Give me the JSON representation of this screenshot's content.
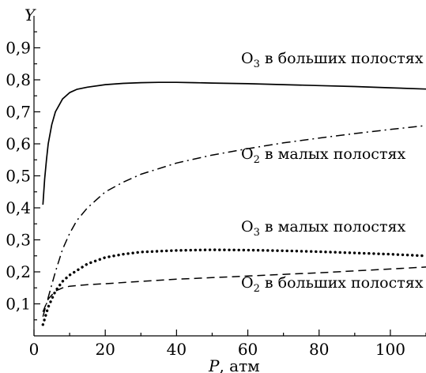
{
  "chart_data": {
    "type": "line",
    "xlabel": "P, атм",
    "ylabel": "Y",
    "xlim": [
      0,
      110
    ],
    "ylim": [
      0,
      1.0
    ],
    "x_ticks": [
      "0",
      "20",
      "40",
      "60",
      "80",
      "100"
    ],
    "y_ticks": [
      "0,1",
      "0,2",
      "0,3",
      "0,4",
      "0,5",
      "0,6",
      "0,7",
      "0,8",
      "0,9"
    ],
    "grid": false,
    "series": [
      {
        "name": "O3 в больших полостях",
        "label_main": "O",
        "label_sub": "3",
        "label_rest": " в больших полостях",
        "style": "solid",
        "x": [
          2.5,
          3,
          3.5,
          4,
          5,
          6,
          7,
          8,
          10,
          12,
          15,
          20,
          25,
          30,
          35,
          40,
          45,
          50,
          60,
          70,
          80,
          90,
          100,
          110
        ],
        "y": [
          0.41,
          0.49,
          0.55,
          0.6,
          0.66,
          0.7,
          0.72,
          0.74,
          0.76,
          0.77,
          0.777,
          0.785,
          0.789,
          0.791,
          0.792,
          0.792,
          0.791,
          0.79,
          0.788,
          0.785,
          0.782,
          0.779,
          0.775,
          0.771
        ]
      },
      {
        "name": "O2 в малых полостях",
        "label_main": "O",
        "label_sub": "2",
        "label_rest": " в малых полостях",
        "style": "dashdot",
        "x": [
          2.5,
          4,
          6,
          8,
          10,
          12,
          15,
          20,
          25,
          30,
          40,
          50,
          60,
          70,
          80,
          90,
          100,
          110
        ],
        "y": [
          0.06,
          0.12,
          0.2,
          0.27,
          0.32,
          0.36,
          0.4,
          0.45,
          0.48,
          0.505,
          0.54,
          0.565,
          0.585,
          0.603,
          0.618,
          0.632,
          0.645,
          0.657
        ]
      },
      {
        "name": "O3 в малых полостях",
        "label_main": "O",
        "label_sub": "3",
        "label_rest": " в малых полостях",
        "style": "dotted",
        "x": [
          2.5,
          4,
          6,
          8,
          10,
          15,
          20,
          25,
          30,
          40,
          50,
          60,
          70,
          80,
          90,
          100,
          110
        ],
        "y": [
          0.035,
          0.09,
          0.14,
          0.17,
          0.19,
          0.225,
          0.245,
          0.255,
          0.262,
          0.267,
          0.269,
          0.268,
          0.266,
          0.263,
          0.259,
          0.255,
          0.25
        ]
      },
      {
        "name": "O2 в больших полостях",
        "label_main": "O",
        "label_sub": "2",
        "label_rest": " в больших полостях",
        "style": "dashed",
        "x": [
          2.5,
          4,
          6,
          8,
          10,
          12,
          15,
          20,
          30,
          40,
          50,
          60,
          70,
          80,
          90,
          100,
          110
        ],
        "y": [
          0.075,
          0.115,
          0.14,
          0.15,
          0.155,
          0.157,
          0.16,
          0.163,
          0.17,
          0.177,
          0.182,
          0.187,
          0.192,
          0.197,
          0.203,
          0.209,
          0.215
        ]
      }
    ]
  }
}
